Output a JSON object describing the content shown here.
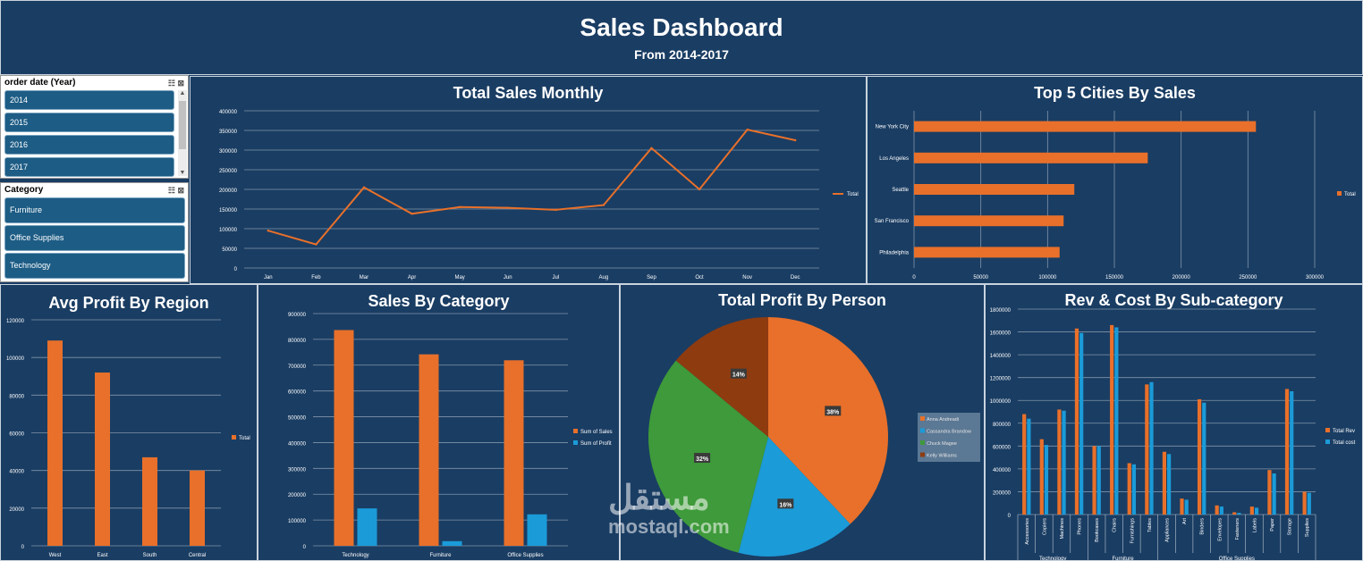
{
  "header": {
    "title": "Sales Dashboard",
    "subtitle": "From 2014-2017"
  },
  "slicers": {
    "year": {
      "title": "order date (Year)",
      "items": [
        "2014",
        "2015",
        "2016",
        "2017"
      ]
    },
    "category": {
      "title": "Category",
      "items": [
        "Furniture",
        "Office Supplies",
        "Technology"
      ]
    }
  },
  "watermark": {
    "arabic": "مستقل",
    "latin": "mostaql.com"
  },
  "colors": {
    "bg": "#1a3d63",
    "orange": "#e8702a",
    "blue": "#1b9bd8",
    "green": "#3e9a3a",
    "brown": "#8e3b10"
  },
  "chart_data": [
    {
      "id": "monthly",
      "type": "line",
      "title": "Total Sales Monthly",
      "categories": [
        "Jan",
        "Feb",
        "Mar",
        "Apr",
        "May",
        "Jun",
        "Jul",
        "Aug",
        "Sep",
        "Oct",
        "Nov",
        "Dec"
      ],
      "series": [
        {
          "name": "Total",
          "values": [
            95000,
            60000,
            205000,
            138000,
            155000,
            153000,
            148000,
            160000,
            305000,
            200000,
            352000,
            325000
          ]
        }
      ],
      "ylim": [
        0,
        400000
      ],
      "yticks": [
        "0",
        "50000",
        "100000",
        "150000",
        "200000",
        "250000",
        "300000",
        "350000",
        "400000"
      ],
      "legend": [
        "Total"
      ]
    },
    {
      "id": "cities",
      "type": "bar",
      "orientation": "horizontal",
      "title": "Top 5 Cities By Sales",
      "categories": [
        "New York City",
        "Los Angeles",
        "Seattle",
        "San Francisco",
        "Philadelphia"
      ],
      "values": [
        256000,
        175000,
        120000,
        112000,
        109000
      ],
      "xlim": [
        0,
        300000
      ],
      "xticks": [
        "0",
        "50000",
        "100000",
        "150000",
        "200000",
        "250000",
        "300000"
      ],
      "legend": [
        "Total"
      ]
    },
    {
      "id": "region",
      "type": "bar",
      "title": "Avg Profit By Region",
      "categories": [
        "West",
        "East",
        "South",
        "Central"
      ],
      "values": [
        109000,
        92000,
        47000,
        40000
      ],
      "ylim": [
        0,
        120000
      ],
      "yticks": [
        "0",
        "20000",
        "40000",
        "60000",
        "80000",
        "100000",
        "120000"
      ],
      "legend": [
        "Total"
      ]
    },
    {
      "id": "category",
      "type": "bar",
      "title": "Sales By Category",
      "categories": [
        "Technology",
        "Furniture",
        "Office Supplies"
      ],
      "series": [
        {
          "name": "Sum of Sales",
          "values": [
            836000,
            742000,
            719000
          ]
        },
        {
          "name": "Sum of Profit",
          "values": [
            145000,
            18000,
            122000
          ]
        }
      ],
      "ylim": [
        0,
        900000
      ],
      "yticks": [
        "0",
        "100000",
        "200000",
        "300000",
        "400000",
        "500000",
        "600000",
        "700000",
        "800000",
        "900000"
      ],
      "legend": [
        "Sum of Sales",
        "Sum of Profit"
      ]
    },
    {
      "id": "person",
      "type": "pie",
      "title": "Total Profit By Person",
      "labels": [
        "Anna Andreadi",
        "Cassandra Brandow",
        "Chuck Magee",
        "Kelly Williams"
      ],
      "values": [
        38,
        16,
        32,
        14
      ],
      "slice_labels": [
        "38%",
        "16%",
        "32%",
        "14%"
      ]
    },
    {
      "id": "subcat",
      "type": "bar",
      "title": "Rev & Cost By Sub-category",
      "categories": [
        "Accessories",
        "Copiers",
        "Machines",
        "Phones",
        "Bookcases",
        "Chairs",
        "Furnishings",
        "Tables",
        "Appliances",
        "Art",
        "Binders",
        "Envelopes",
        "Fasteners",
        "Labels",
        "Paper",
        "Storage",
        "Supplies"
      ],
      "groups": [
        {
          "name": "Technology",
          "count": 4
        },
        {
          "name": "Furniture",
          "count": 4
        },
        {
          "name": "Office Supplies",
          "count": 9
        }
      ],
      "series": [
        {
          "name": "Total Rev",
          "values": [
            880000,
            660000,
            920000,
            1630000,
            600000,
            1660000,
            450000,
            1140000,
            550000,
            140000,
            1010000,
            80000,
            20000,
            70000,
            390000,
            1100000,
            200000
          ]
        },
        {
          "name": "Total cost",
          "values": [
            840000,
            610000,
            910000,
            1590000,
            600000,
            1640000,
            440000,
            1160000,
            530000,
            130000,
            980000,
            70000,
            15000,
            60000,
            360000,
            1080000,
            190000
          ]
        }
      ],
      "ylim": [
        0,
        1800000
      ],
      "yticks": [
        "0",
        "200000",
        "400000",
        "600000",
        "800000",
        "1000000",
        "1200000",
        "1400000",
        "1600000",
        "1800000"
      ],
      "legend": [
        "Total Rev",
        "Total cost"
      ]
    }
  ]
}
